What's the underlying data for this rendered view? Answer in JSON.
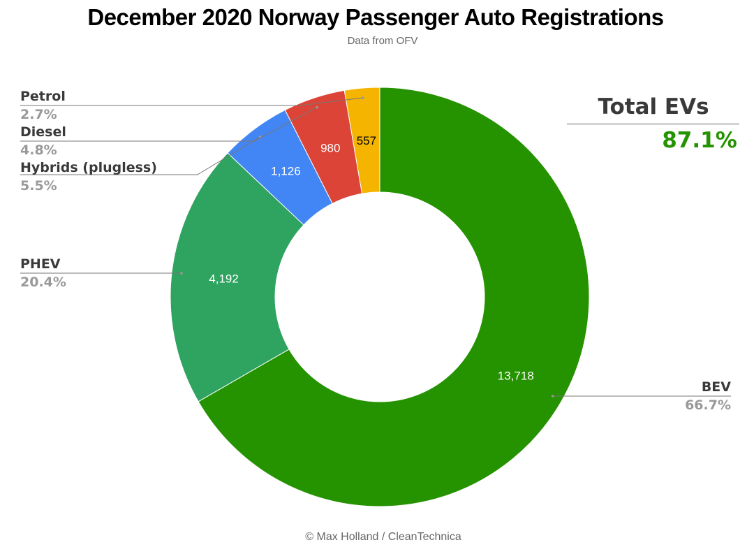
{
  "chart_data": {
    "type": "pie",
    "donut": true,
    "title": "December 2020 Norway Passenger Auto Registrations",
    "subtitle": "Data from OFV",
    "slices": [
      {
        "label": "BEV",
        "value": 13718,
        "value_label": "13,718",
        "percent_label": "66.7%",
        "color": "#259200"
      },
      {
        "label": "PHEV",
        "value": 4192,
        "value_label": "4,192",
        "percent_label": "20.4%",
        "color": "#2fa360"
      },
      {
        "label": "Hybrids (plugless)",
        "value": 1126,
        "value_label": "1,126",
        "percent_label": "5.5%",
        "color": "#4285f4"
      },
      {
        "label": "Diesel",
        "value": 980,
        "value_label": "980",
        "percent_label": "4.8%",
        "color": "#db4437"
      },
      {
        "label": "Petrol",
        "value": 557,
        "value_label": "557",
        "percent_label": "2.7%",
        "color": "#f4b400"
      }
    ],
    "legend": "none"
  },
  "callout": {
    "title": "Total EVs",
    "value": "87.1%",
    "value_color": "#259200"
  },
  "credit": "© Max Holland / CleanTechnica"
}
